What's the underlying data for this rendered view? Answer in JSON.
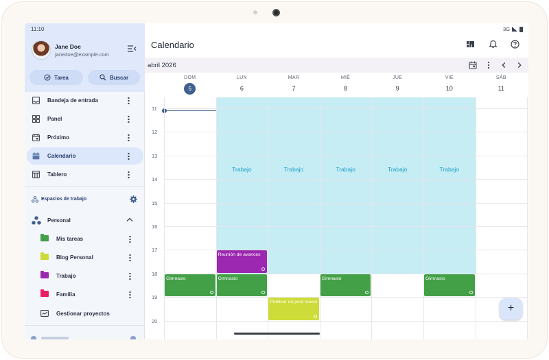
{
  "status_bar": {
    "time": "11:10",
    "network": "3G"
  },
  "user": {
    "name": "Jane Doe",
    "email": "janedoe@example.com"
  },
  "actions": {
    "task_label": "Tarea",
    "search_label": "Buscar"
  },
  "nav": {
    "items": [
      {
        "label": "Bandeja de entrada",
        "icon": "inbox-icon"
      },
      {
        "label": "Panel",
        "icon": "dashboard-icon"
      },
      {
        "label": "Próximo",
        "icon": "upcoming-icon"
      },
      {
        "label": "Calendario",
        "icon": "calendar-icon",
        "active": true
      },
      {
        "label": "Tablero",
        "icon": "board-icon"
      }
    ]
  },
  "workspaces": {
    "label": "Espacios de trabajo",
    "group": "Personal",
    "projects": [
      {
        "label": "Mis tareas",
        "color": "#43a047"
      },
      {
        "label": "Blog Personal",
        "color": "#cddc39"
      },
      {
        "label": "Trabajo",
        "color": "#9c27b0"
      },
      {
        "label": "Familia",
        "color": "#e91e63"
      }
    ],
    "manage_label": "Gestionar proyectos"
  },
  "header": {
    "title": "Calendario"
  },
  "calendar": {
    "month_label": "abril 2026",
    "days": [
      {
        "name": "DOM",
        "num": "5",
        "today": true
      },
      {
        "name": "LUN",
        "num": "6"
      },
      {
        "name": "MAR",
        "num": "7"
      },
      {
        "name": "MIÉ",
        "num": "8"
      },
      {
        "name": "JUE",
        "num": "9"
      },
      {
        "name": "VIE",
        "num": "10"
      },
      {
        "name": "SÁB",
        "num": "11"
      }
    ],
    "hours": [
      "11",
      "12",
      "13",
      "14",
      "15",
      "16",
      "17",
      "18",
      "19",
      "20"
    ],
    "work_label": "Trabajo",
    "work_days": [
      1,
      2,
      3,
      4,
      5
    ],
    "events": [
      {
        "title": "Reunión de avances",
        "day": 1,
        "start": 17.0,
        "end": 18.0,
        "color": "#9c27b0"
      },
      {
        "title": "Gimnasio",
        "day": 0,
        "start": 18.0,
        "end": 19.0,
        "color": "#43a047"
      },
      {
        "title": "Gimnasio",
        "day": 1,
        "start": 18.0,
        "end": 19.0,
        "color": "#43a047"
      },
      {
        "title": "Gimnasio",
        "day": 3,
        "start": 18.0,
        "end": 19.0,
        "color": "#43a047"
      },
      {
        "title": "Gimnasio",
        "day": 5,
        "start": 18.0,
        "end": 19.0,
        "color": "#43a047"
      },
      {
        "title": "Publicar un post nuevo",
        "day": 2,
        "start": 19.0,
        "end": 20.0,
        "color": "#cddc39"
      }
    ],
    "now_time": 11.1
  },
  "fab": {
    "label": "+"
  }
}
